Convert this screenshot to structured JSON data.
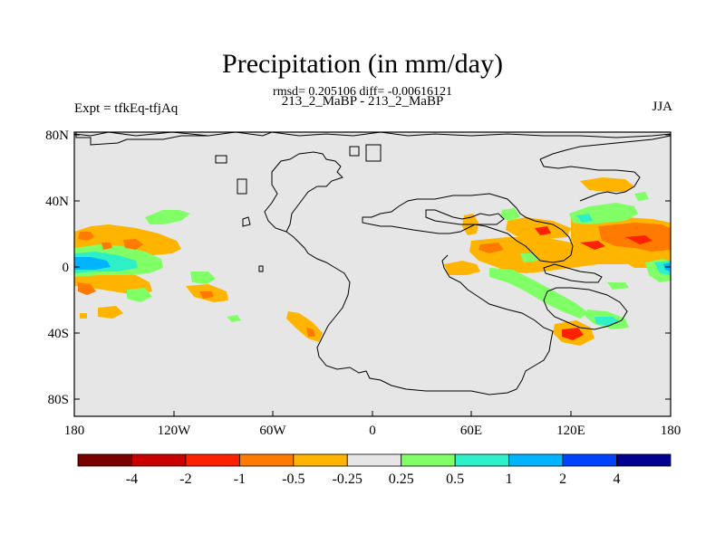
{
  "title": "Precipitation (in mm/day)",
  "stats_line": "rmsd= 0.205106 diff= -0.00616121",
  "subtitle_center": "213_2_MaBP - 213_2_MaBP",
  "subtitle_left": "Expt = tfkEq-tfjAq",
  "subtitle_right": "JJA",
  "axes": {
    "y_ticks": [
      "80N",
      "40N",
      "0",
      "40S",
      "80S"
    ],
    "x_ticks": [
      "180",
      "120W",
      "60W",
      "0",
      "60E",
      "120E",
      "180"
    ]
  },
  "colorbar": {
    "colors": [
      "#7a0000",
      "#c80000",
      "#ff2200",
      "#ff7a00",
      "#ffb400",
      "#e6e6e6",
      "#80ff66",
      "#2ef0c8",
      "#00b4ff",
      "#0044ff",
      "#000090"
    ],
    "labels": [
      "-4",
      "-2",
      "-1",
      "-0.5",
      "-0.25",
      "0.25",
      "0.5",
      "1",
      "2",
      "4"
    ]
  },
  "colors": {
    "background": "#e6e6e6",
    "coast": "#000000"
  }
}
